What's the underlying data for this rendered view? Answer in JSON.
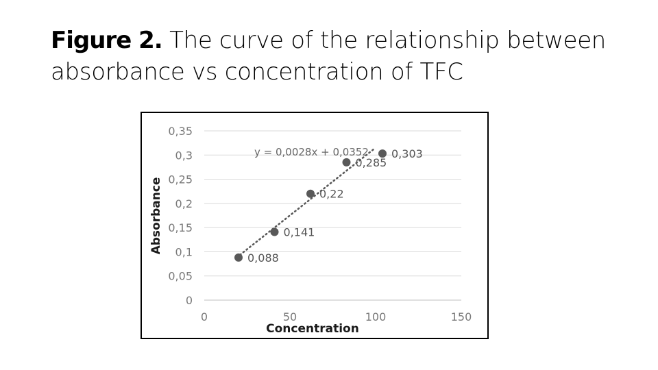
{
  "slide": {
    "title_bold": "Figure 2.",
    "title_text": " The curve of the relationship between absorbance vs concentration of TFC"
  },
  "colors": {
    "marker": "#595959",
    "trendline": "#595959",
    "gridline": "#d9d9d9",
    "tick_label": "#7a7a7a",
    "frame": "#000000"
  },
  "chart_data": {
    "type": "scatter",
    "xlabel": "Concentration",
    "ylabel": "Absorbance",
    "xlim": [
      0,
      150
    ],
    "ylim": [
      0,
      0.35
    ],
    "x_ticks": [
      0,
      50,
      100,
      150
    ],
    "x_tick_labels": [
      "0",
      "50",
      "100",
      "150"
    ],
    "y_ticks": [
      0,
      0.05,
      0.1,
      0.15,
      0.2,
      0.25,
      0.3,
      0.35
    ],
    "y_tick_labels": [
      "0",
      "0,05",
      "0,1",
      "0,15",
      "0,2",
      "0,25",
      "0,3",
      "0,35"
    ],
    "grid": "horizontal",
    "points": [
      {
        "x": 20,
        "y": 0.088,
        "label": "0,088"
      },
      {
        "x": 41,
        "y": 0.141,
        "label": "0,141"
      },
      {
        "x": 62,
        "y": 0.22,
        "label": "0,22"
      },
      {
        "x": 83,
        "y": 0.285,
        "label": "0,285"
      },
      {
        "x": 104,
        "y": 0.303,
        "label": "0,303"
      }
    ],
    "trendline": {
      "type": "linear",
      "slope": 0.0028,
      "intercept": 0.0352,
      "x_range": [
        20,
        104
      ],
      "equation": "y = 0,0028x + 0,0352"
    }
  }
}
